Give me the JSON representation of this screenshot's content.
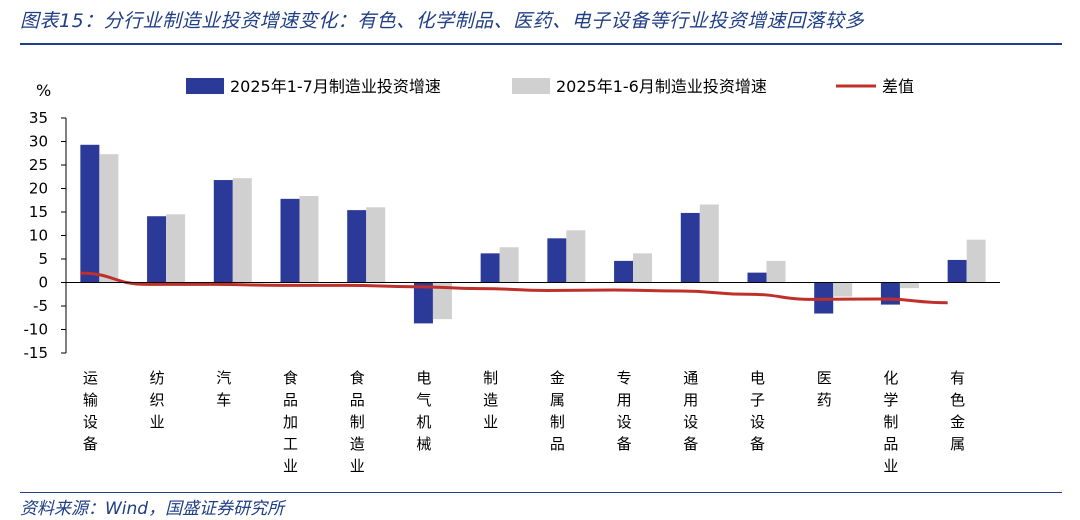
{
  "title": "图表15：分行业制造业投资增速变化：有色、化学制品、医药、电子设备等行业投资增速回落较多",
  "source": "资料来源：Wind，国盛证券研究所",
  "colors": {
    "title": "#1f3f86",
    "series1": "#2b3a98",
    "series2": "#d0d0d0",
    "line": "#c0302b"
  },
  "chart_data": {
    "type": "bar",
    "unit_label": "%",
    "ylim": [
      -15,
      35
    ],
    "yticks": [
      35,
      30,
      25,
      20,
      15,
      10,
      5,
      0,
      -5,
      -10,
      -15
    ],
    "grid": false,
    "legend_position": "top",
    "categories": [
      "运输设备",
      "纺织业",
      "汽车",
      "食品加工业",
      "食品制造业",
      "电气机械",
      "制造业",
      "金属制品",
      "专用设备",
      "通用设备",
      "电子设备",
      "医药",
      "化学制品业",
      "有色金属"
    ],
    "series": [
      {
        "name": "2025年1-7月制造业投资增速",
        "type": "bar",
        "values": [
          29.3,
          14.1,
          21.8,
          17.8,
          15.4,
          -8.7,
          6.2,
          9.4,
          4.6,
          14.8,
          2.1,
          -6.6,
          -4.7,
          4.8
        ]
      },
      {
        "name": "2025年1-6月制造业投资增速",
        "type": "bar",
        "values": [
          27.3,
          14.5,
          22.2,
          18.4,
          16.0,
          -7.8,
          7.5,
          11.1,
          6.2,
          16.6,
          4.6,
          -3.0,
          -1.2,
          9.1
        ]
      },
      {
        "name": "差值",
        "type": "line",
        "values": [
          2.0,
          -0.4,
          -0.4,
          -0.6,
          -0.6,
          -0.9,
          -1.3,
          -1.7,
          -1.6,
          -1.8,
          -2.5,
          -3.6,
          -3.5,
          -4.3
        ]
      }
    ]
  }
}
